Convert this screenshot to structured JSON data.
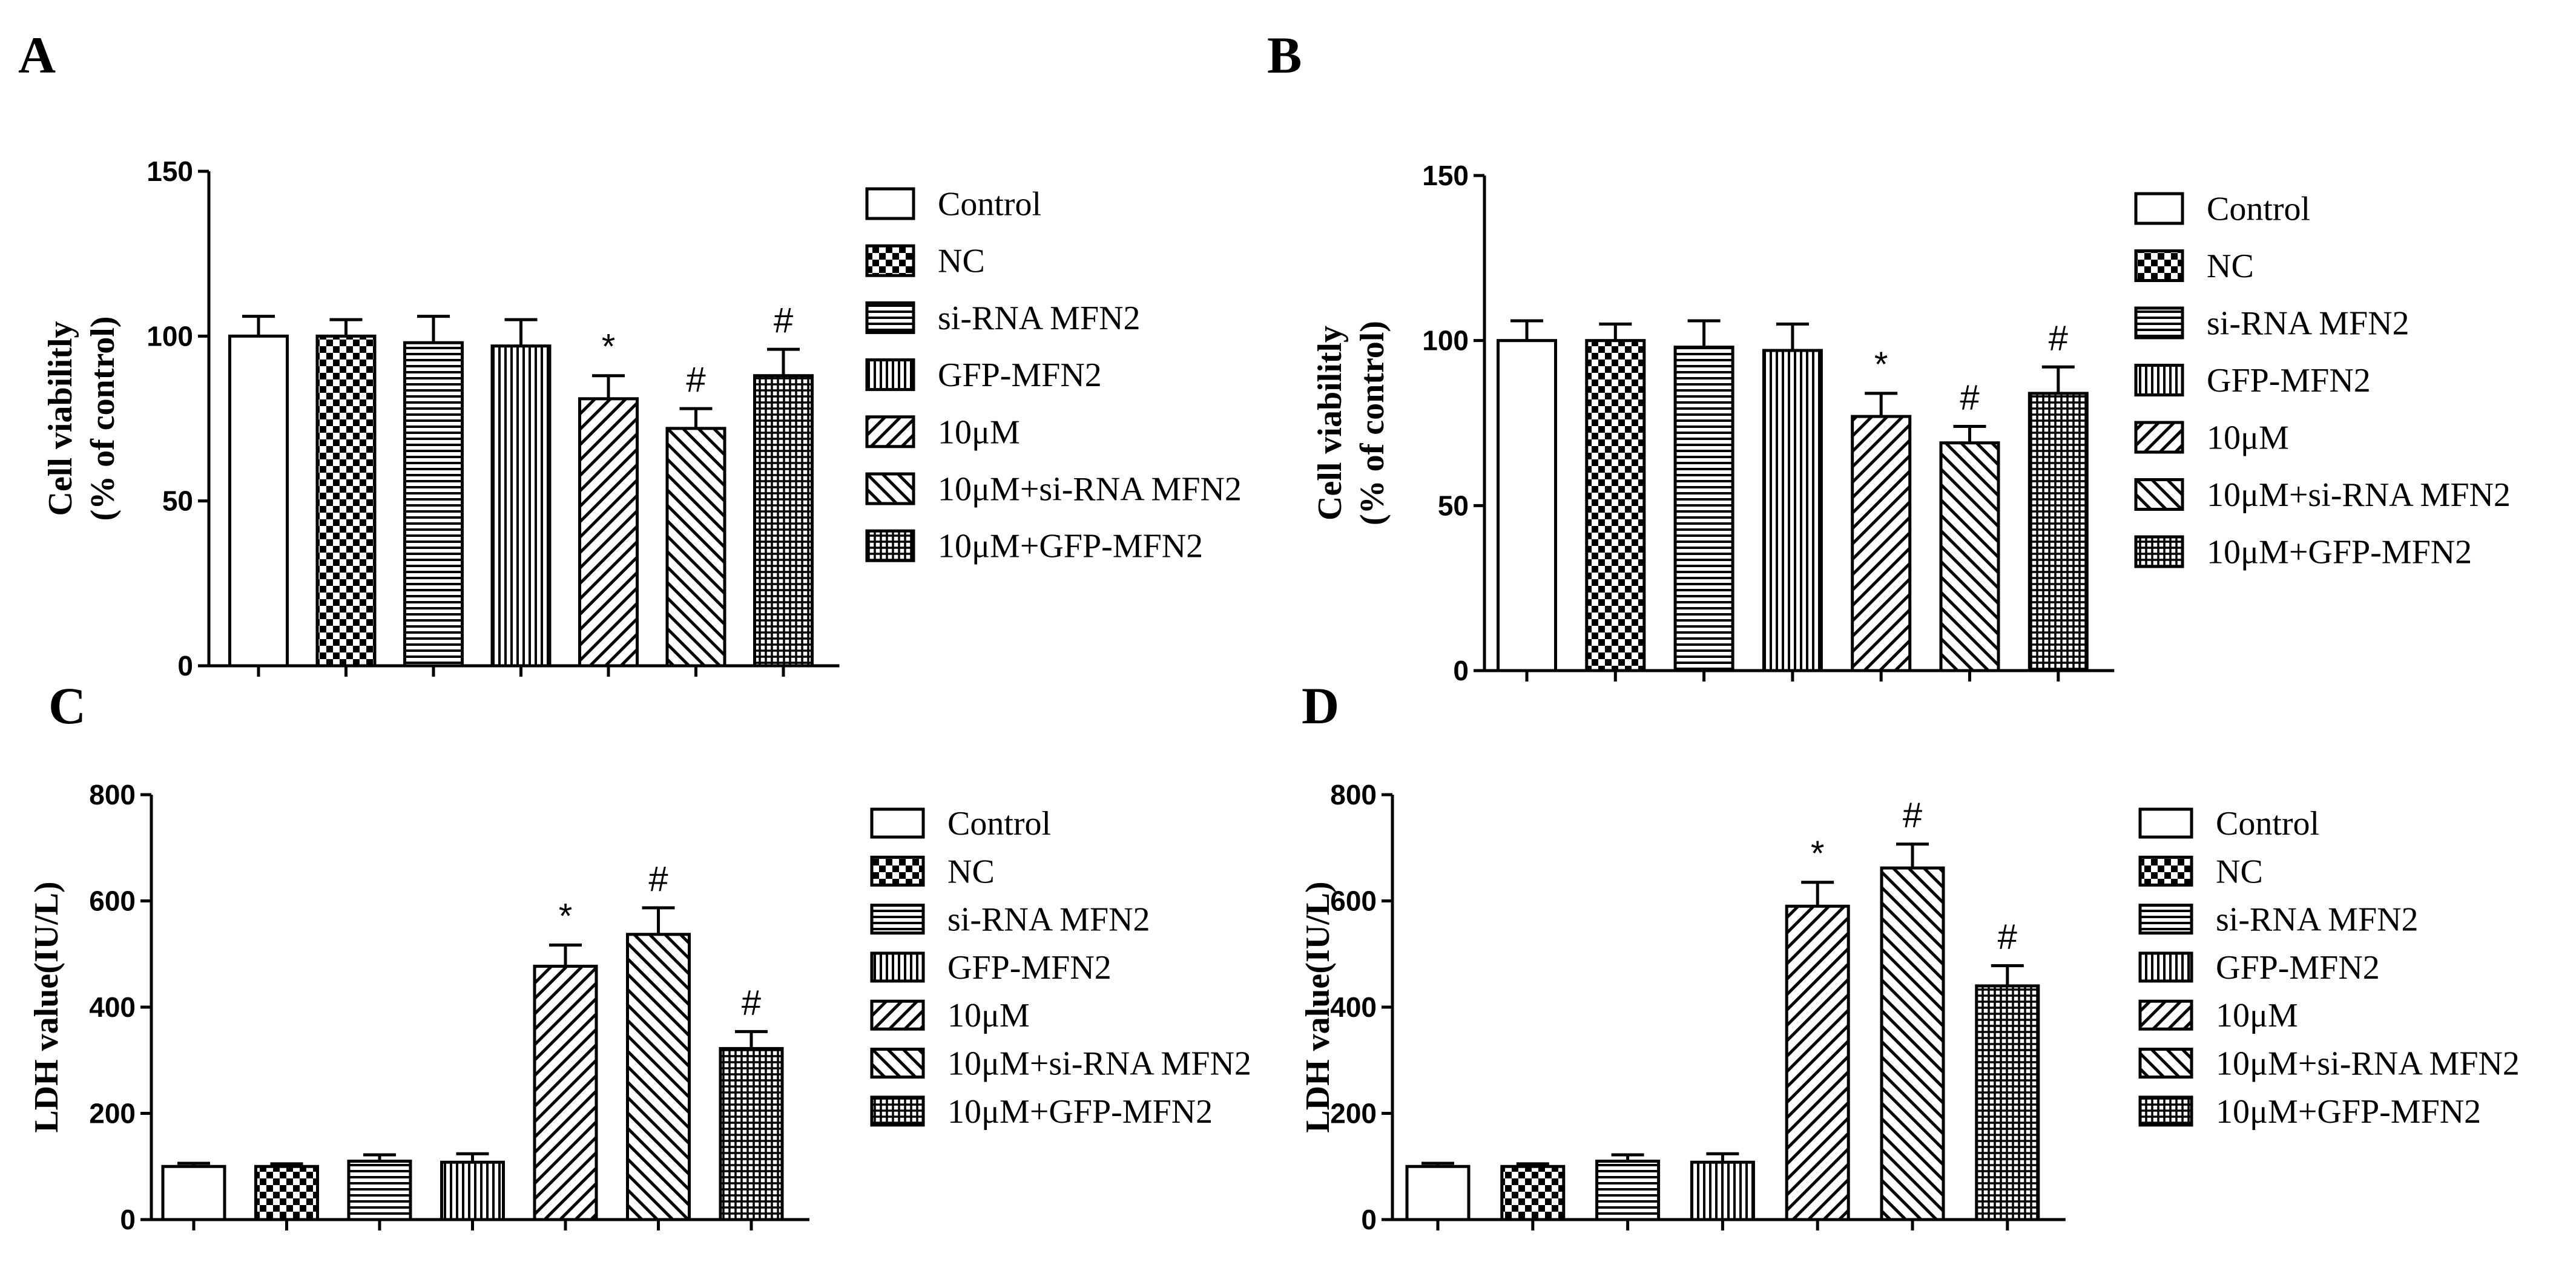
{
  "chart_data": [
    {
      "panel": "A",
      "type": "bar",
      "ylabel": "Cell viabilitly",
      "ylabel2": "(% of control)",
      "ylim": [
        0,
        150
      ],
      "yticks": [
        "0",
        "50",
        "100",
        "150"
      ],
      "categories": [
        "Control",
        "NC",
        "si-RNA MFN2",
        "GFP-MFN2",
        "10μM",
        "10μM+si-RNA MFN2",
        "10μM+GFP-MFN2"
      ],
      "values": [
        100,
        100,
        98,
        97,
        81,
        72,
        88
      ],
      "errors": [
        6,
        5,
        8,
        8,
        7,
        6,
        8
      ],
      "annotations": [
        "",
        "",
        "",
        "",
        "*",
        "#",
        "#"
      ]
    },
    {
      "panel": "B",
      "type": "bar",
      "ylabel": "Cell viabilitly",
      "ylabel2": "(% of control)",
      "ylim": [
        0,
        150
      ],
      "yticks": [
        "0",
        "50",
        "100",
        "150"
      ],
      "categories": [
        "Control",
        "NC",
        "si-RNA MFN2",
        "GFP-MFN2",
        "10μM",
        "10μM+si-RNA MFN2",
        "10μM+GFP-MFN2"
      ],
      "values": [
        100,
        100,
        98,
        97,
        77,
        69,
        84
      ],
      "errors": [
        6,
        5,
        8,
        8,
        7,
        5,
        8
      ],
      "annotations": [
        "",
        "",
        "",
        "",
        "*",
        "#",
        "#"
      ]
    },
    {
      "panel": "C",
      "type": "bar",
      "ylabel": "LDH value(IU/L)",
      "ylabel2": "",
      "ylim": [
        0,
        800
      ],
      "yticks": [
        "0",
        "200",
        "400",
        "600",
        "800"
      ],
      "categories": [
        "Control",
        "NC",
        "si-RNA MFN2",
        "GFP-MFN2",
        "10μM",
        "10μM+si-RNA MFN2",
        "10μM+GFP-MFN2"
      ],
      "values": [
        100,
        100,
        110,
        108,
        477,
        537,
        322
      ],
      "errors": [
        6,
        5,
        12,
        16,
        40,
        50,
        32
      ],
      "annotations": [
        "",
        "",
        "",
        "",
        "*",
        "#",
        "#"
      ]
    },
    {
      "panel": "D",
      "type": "bar",
      "ylabel": "LDH value(IU/L)",
      "ylabel2": "",
      "ylim": [
        0,
        800
      ],
      "yticks": [
        "0",
        "200",
        "400",
        "600",
        "800"
      ],
      "categories": [
        "Control",
        "NC",
        "si-RNA MFN2",
        "GFP-MFN2",
        "10μM",
        "10μM+si-RNA MFN2",
        "10μM+GFP-MFN2"
      ],
      "values": [
        100,
        100,
        110,
        108,
        590,
        662,
        440
      ],
      "errors": [
        6,
        5,
        12,
        16,
        45,
        45,
        38
      ],
      "annotations": [
        "",
        "",
        "",
        "",
        "*",
        "#",
        "#"
      ]
    }
  ],
  "legend": {
    "items": [
      "Control",
      "NC",
      "si-RNA MFN2",
      "GFP-MFN2",
      "10μM",
      "10μM+si-RNA MFN2",
      "10μM+GFP-MFN2"
    ],
    "patterns": [
      "blank",
      "checker",
      "hstripe",
      "vstripe",
      "diag-right",
      "diag-left",
      "grid"
    ]
  },
  "colors": {
    "ink": "#000000",
    "fill": "#ffffff"
  }
}
